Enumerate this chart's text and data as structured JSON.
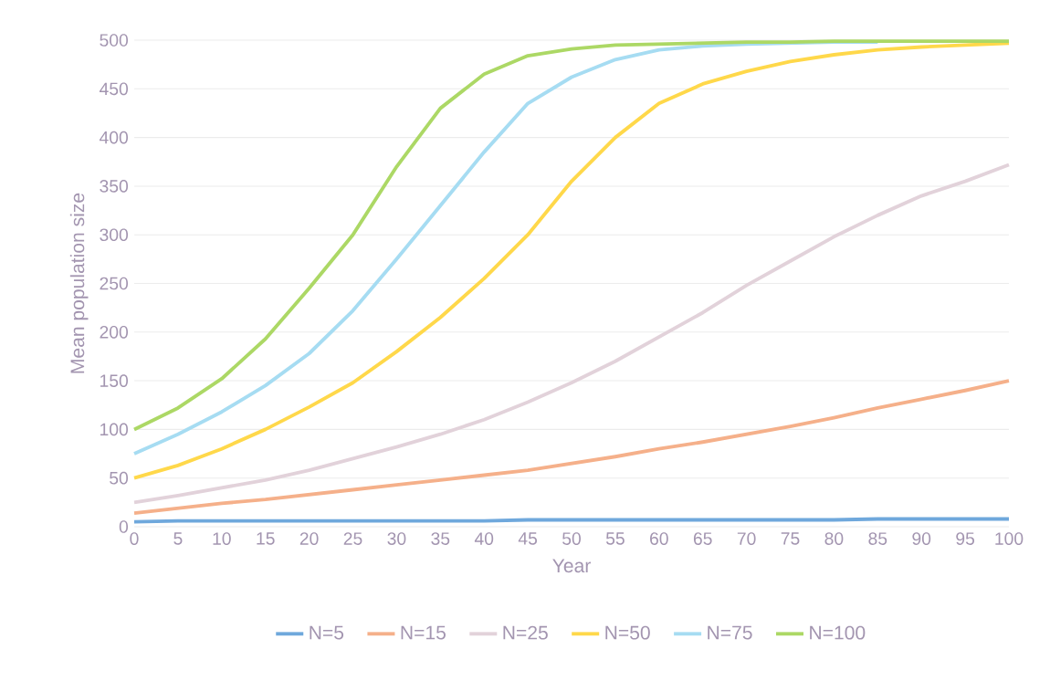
{
  "chart_data": {
    "type": "line",
    "xlabel": "Year",
    "ylabel": "Mean population size",
    "x": [
      0,
      5,
      10,
      15,
      20,
      25,
      30,
      35,
      40,
      45,
      50,
      55,
      60,
      65,
      70,
      75,
      80,
      85,
      90,
      95,
      100
    ],
    "series": [
      {
        "name": "N=5",
        "color": "#6fa8dc",
        "values": [
          5,
          6,
          6,
          6,
          6,
          6,
          6,
          6,
          6,
          7,
          7,
          7,
          7,
          7,
          7,
          7,
          7,
          8,
          8,
          8,
          8
        ]
      },
      {
        "name": "N=15",
        "color": "#f5b08a",
        "values": [
          14,
          19,
          24,
          28,
          33,
          38,
          43,
          48,
          53,
          58,
          65,
          72,
          80,
          87,
          95,
          103,
          112,
          122,
          131,
          140,
          150
        ]
      },
      {
        "name": "N=25",
        "color": "#e2d2da",
        "values": [
          25,
          32,
          40,
          48,
          58,
          70,
          82,
          95,
          110,
          128,
          148,
          170,
          195,
          220,
          248,
          273,
          298,
          320,
          340,
          355,
          372
        ]
      },
      {
        "name": "N=50",
        "color": "#ffd84a",
        "values": [
          50,
          63,
          80,
          100,
          123,
          148,
          180,
          215,
          255,
          300,
          355,
          400,
          435,
          455,
          468,
          478,
          485,
          490,
          493,
          495,
          497
        ]
      },
      {
        "name": "N=75",
        "color": "#a6dcf2",
        "values": [
          75,
          95,
          118,
          145,
          178,
          222,
          275,
          330,
          385,
          435,
          462,
          480,
          490,
          494,
          496,
          497,
          498,
          498,
          null,
          null,
          null
        ]
      },
      {
        "name": "N=100",
        "color": "#acd865",
        "values": [
          100,
          122,
          152,
          193,
          245,
          300,
          370,
          430,
          465,
          484,
          491,
          495,
          496,
          497,
          498,
          498,
          499,
          499,
          499,
          499,
          499
        ]
      }
    ],
    "xlim": [
      0,
      100
    ],
    "ylim": [
      0,
      500
    ],
    "xticks": [
      0,
      5,
      10,
      15,
      20,
      25,
      30,
      35,
      40,
      45,
      50,
      55,
      60,
      65,
      70,
      75,
      80,
      85,
      90,
      95,
      100
    ],
    "yticks": [
      0,
      50,
      100,
      150,
      200,
      250,
      300,
      350,
      400,
      450,
      500
    ],
    "grid": "y",
    "legend": "bottom",
    "marker": "none",
    "line_style": "solid"
  }
}
